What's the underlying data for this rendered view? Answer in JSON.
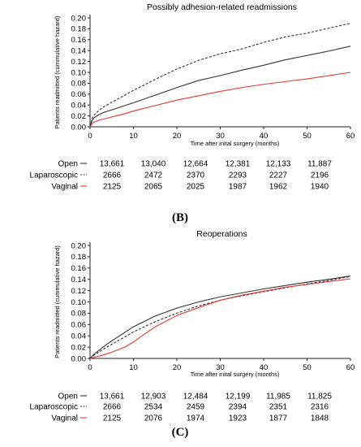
{
  "chart_data": [
    {
      "type": "line",
      "title": "Possibly adhesion-related readmissions",
      "xlabel": "Time after inital surgery (months)",
      "ylabel": "Patients readmitted (cummulative hazard)",
      "xlim": [
        0,
        60
      ],
      "ylim": [
        0,
        0.2
      ],
      "xticks": [
        "0",
        "10",
        "20",
        "30",
        "40",
        "50",
        "60"
      ],
      "yticks": [
        "0.00",
        "0.02",
        "0.04",
        "0.06",
        "0.08",
        "0.10",
        "0.12",
        "0.14",
        "0.16",
        "0.18",
        "0.20"
      ],
      "grid": false,
      "panel_label": "(B)",
      "series": [
        {
          "name": "Open",
          "color": "#333333",
          "dash": "solid",
          "x": [
            0,
            0.5,
            1,
            2,
            3,
            5,
            8,
            10,
            15,
            20,
            25,
            30,
            35,
            40,
            45,
            50,
            55,
            60
          ],
          "y": [
            0.0,
            0.012,
            0.017,
            0.022,
            0.026,
            0.031,
            0.039,
            0.044,
            0.058,
            0.072,
            0.085,
            0.094,
            0.104,
            0.113,
            0.123,
            0.131,
            0.139,
            0.148
          ]
        },
        {
          "name": "Laparoscopic",
          "color": "#333333",
          "dash": "dashed",
          "x": [
            0,
            0.5,
            1,
            2,
            3,
            5,
            8,
            10,
            15,
            20,
            25,
            30,
            35,
            40,
            45,
            50,
            55,
            60
          ],
          "y": [
            0.0,
            0.016,
            0.022,
            0.03,
            0.036,
            0.045,
            0.058,
            0.067,
            0.087,
            0.106,
            0.122,
            0.134,
            0.143,
            0.155,
            0.165,
            0.172,
            0.181,
            0.19
          ]
        },
        {
          "name": "Vaginal",
          "color": "#e03a30",
          "dash": "solid",
          "x": [
            0,
            0.5,
            1,
            2,
            3,
            5,
            8,
            10,
            15,
            20,
            25,
            30,
            35,
            40,
            45,
            50,
            55,
            60
          ],
          "y": [
            0.0,
            0.006,
            0.009,
            0.012,
            0.014,
            0.018,
            0.024,
            0.029,
            0.039,
            0.049,
            0.057,
            0.065,
            0.072,
            0.078,
            0.083,
            0.088,
            0.094,
            0.1
          ]
        }
      ],
      "risk_table": {
        "rows": [
          {
            "name": "Open",
            "values": [
              "13,661",
              "13,040",
              "12,664",
              "12,381",
              "12,133",
              "11,887"
            ]
          },
          {
            "name": "Laparoscopic",
            "values": [
              "2666",
              "2472",
              "2370",
              "2293",
              "2227",
              "2196"
            ]
          },
          {
            "name": "Vaginal",
            "values": [
              "2125",
              "2065",
              "2025",
              "1987",
              "1962",
              "1940"
            ]
          }
        ]
      }
    },
    {
      "type": "line",
      "title": "Reoperations",
      "xlabel": "Time after inital surgery (months)",
      "ylabel": "Patients readmitted (cummulative hazard)",
      "xlim": [
        0,
        60
      ],
      "ylim": [
        0,
        0.2
      ],
      "xticks": [
        "0",
        "10",
        "20",
        "30",
        "40",
        "50",
        "60"
      ],
      "yticks": [
        "0.00",
        "0.02",
        "0.04",
        "0.06",
        "0.08",
        "0.10",
        "0.12",
        "0.14",
        "0.16",
        "0.18",
        "0.20"
      ],
      "grid": false,
      "panel_label": "(C)",
      "series": [
        {
          "name": "Open",
          "color": "#333333",
          "dash": "solid",
          "x": [
            0,
            1,
            2,
            3,
            5,
            8,
            10,
            15,
            20,
            25,
            30,
            35,
            40,
            45,
            50,
            55,
            60
          ],
          "y": [
            0.0,
            0.008,
            0.014,
            0.02,
            0.031,
            0.046,
            0.056,
            0.075,
            0.089,
            0.1,
            0.109,
            0.116,
            0.123,
            0.129,
            0.135,
            0.14,
            0.146
          ]
        },
        {
          "name": "Laparoscopic",
          "color": "#333333",
          "dash": "dashed",
          "x": [
            0,
            1,
            2,
            3,
            5,
            8,
            10,
            15,
            20,
            25,
            30,
            35,
            40,
            45,
            50,
            55,
            60
          ],
          "y": [
            0.0,
            0.006,
            0.011,
            0.016,
            0.025,
            0.038,
            0.047,
            0.065,
            0.08,
            0.093,
            0.103,
            0.111,
            0.118,
            0.125,
            0.132,
            0.138,
            0.145
          ]
        },
        {
          "name": "Vaginal",
          "color": "#e03a30",
          "dash": "solid",
          "x": [
            0,
            1,
            2,
            3,
            5,
            8,
            10,
            12,
            15,
            20,
            25,
            30,
            35,
            40,
            45,
            50,
            55,
            60
          ],
          "y": [
            0.0,
            0.002,
            0.004,
            0.006,
            0.011,
            0.02,
            0.029,
            0.04,
            0.056,
            0.076,
            0.09,
            0.103,
            0.112,
            0.119,
            0.126,
            0.131,
            0.136,
            0.141
          ]
        }
      ],
      "risk_table": {
        "rows": [
          {
            "name": "Open",
            "values": [
              "13,661",
              "12,903",
              "12,484",
              "12,199",
              "11,985",
              "11,825"
            ]
          },
          {
            "name": "Laparoscopic",
            "values": [
              "2666",
              "2534",
              "2459",
              "2394",
              "2351",
              "2316"
            ]
          },
          {
            "name": "Vaginal",
            "values": [
              "2125",
              "2076",
              "1974",
              "1923",
              "1877",
              "1848"
            ]
          }
        ]
      }
    }
  ]
}
